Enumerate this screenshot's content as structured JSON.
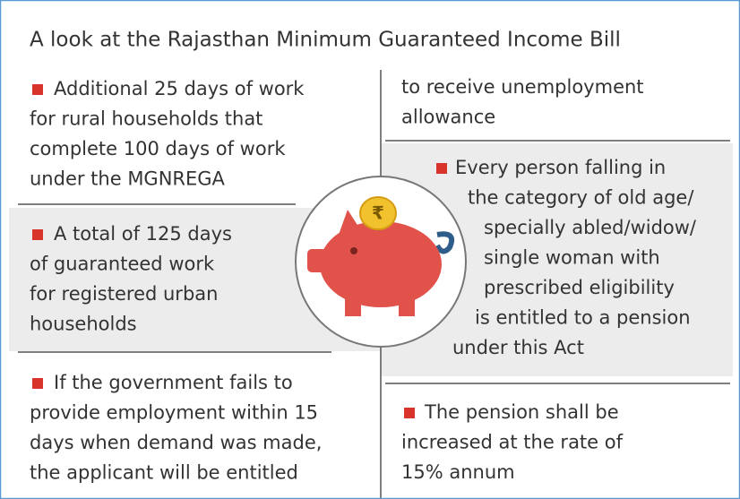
{
  "title": "A look at the Rajasthan Minimum Guaranteed Income Bill",
  "coin_symbol": "₹",
  "left": [
    {
      "lines": [
        "Additional 25 days of work",
        "for rural households that",
        "complete 100 days of work",
        "under the MGNREGA"
      ]
    },
    {
      "lines": [
        "A total of 125 days",
        "of guaranteed work",
        "for registered urban",
        "households"
      ]
    },
    {
      "lines": [
        "If the government fails to",
        "provide employment within 15",
        "days when demand was made,",
        "the applicant will be entitled"
      ]
    }
  ],
  "right": [
    {
      "lines": [
        "to receive unemployment",
        "allowance"
      ]
    },
    {
      "lines": [
        "Every person falling in",
        "the category of old age/",
        "specially abled/widow/",
        "single woman with",
        "prescribed eligibility",
        "is entitled to a pension",
        "under this Act"
      ]
    },
    {
      "lines": [
        "The pension shall be",
        "increased at the rate of",
        "15% annum"
      ]
    }
  ]
}
